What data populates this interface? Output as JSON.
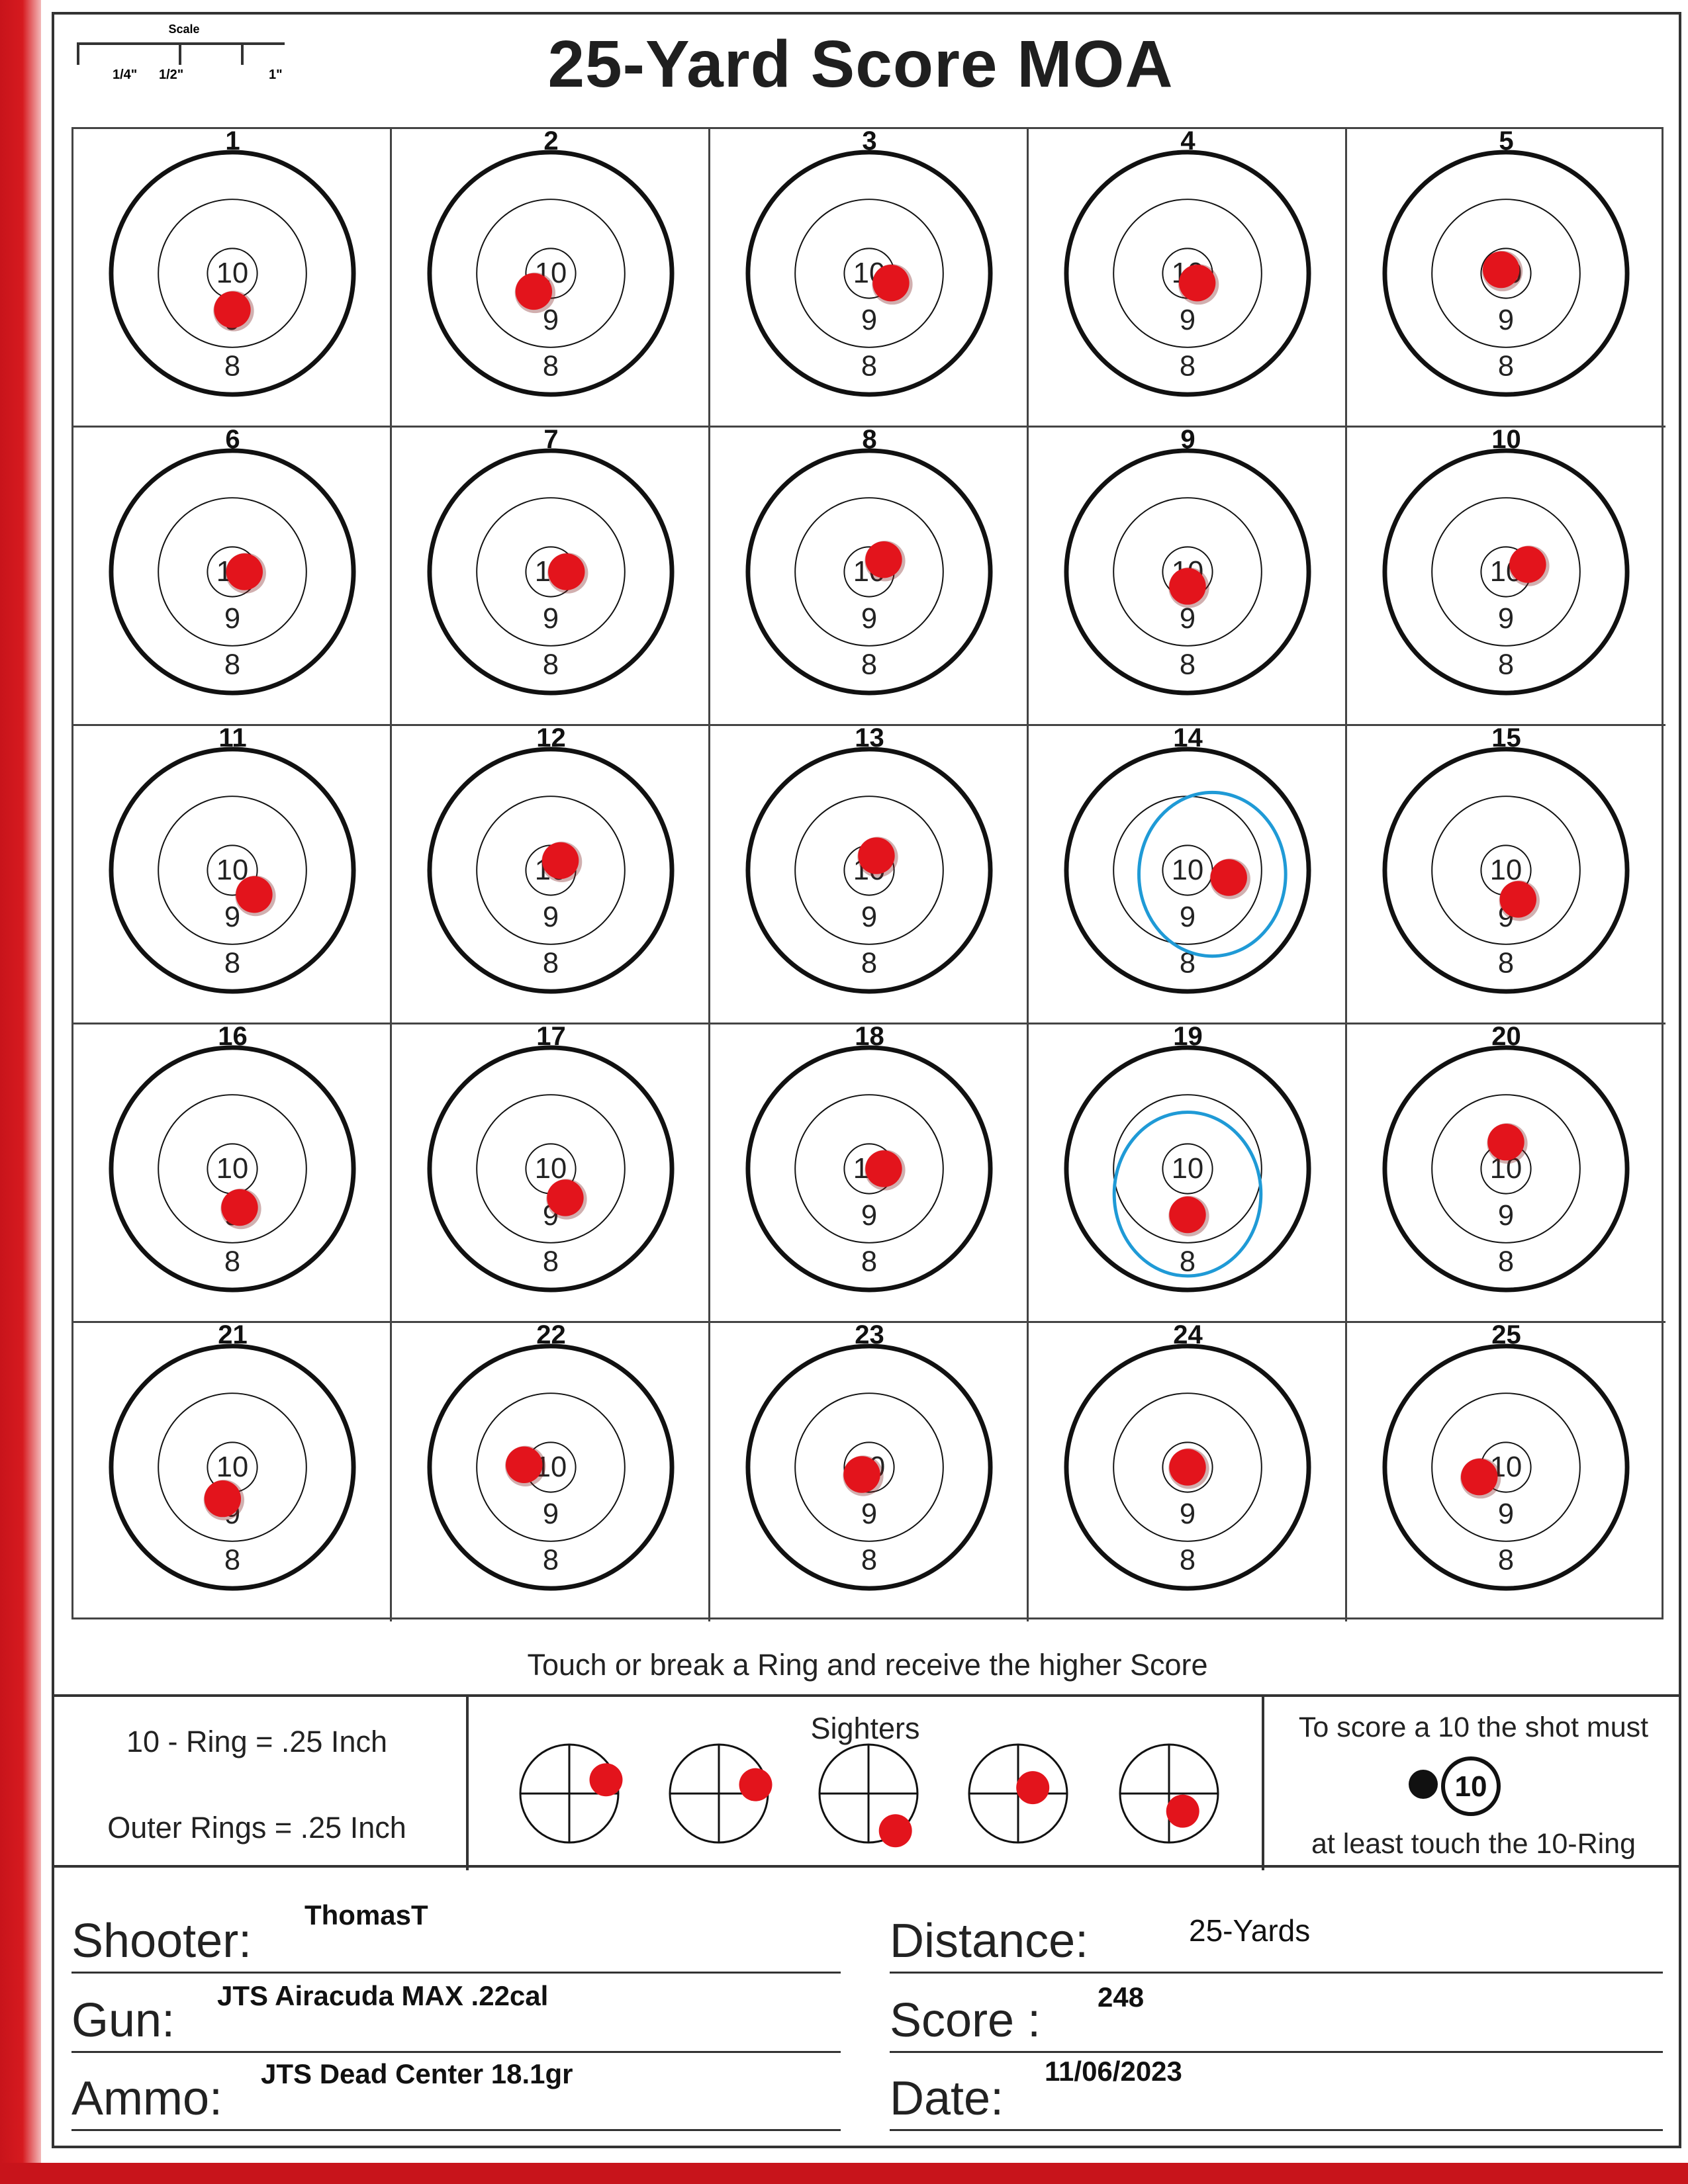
{
  "title": "25-Yard Score MOA",
  "scale": {
    "caption": "Scale",
    "labels": [
      "1/4\"",
      "1/2\"",
      "1\""
    ]
  },
  "targets": [
    {
      "number": "1",
      "impact": [
        0.0,
        0.3
      ]
    },
    {
      "number": "2",
      "impact": [
        -0.14,
        0.15
      ]
    },
    {
      "number": "3",
      "impact": [
        0.18,
        0.08
      ]
    },
    {
      "number": "4",
      "impact": [
        0.08,
        0.08
      ]
    },
    {
      "number": "5",
      "impact": [
        -0.04,
        -0.03
      ]
    },
    {
      "number": "6",
      "impact": [
        0.1,
        0.0
      ]
    },
    {
      "number": "7",
      "impact": [
        0.13,
        0.0
      ]
    },
    {
      "number": "8",
      "impact": [
        0.12,
        -0.1
      ]
    },
    {
      "number": "9",
      "impact": [
        0.0,
        0.12
      ]
    },
    {
      "number": "10",
      "impact": [
        0.18,
        -0.06
      ]
    },
    {
      "number": "11",
      "impact": [
        0.18,
        0.2
      ]
    },
    {
      "number": "12",
      "impact": [
        0.08,
        -0.08
      ]
    },
    {
      "number": "13",
      "impact": [
        0.06,
        -0.12
      ]
    },
    {
      "number": "14",
      "impact": [
        0.34,
        0.06
      ],
      "circled": true
    },
    {
      "number": "15",
      "impact": [
        0.1,
        0.24
      ]
    },
    {
      "number": "16",
      "impact": [
        0.06,
        0.32
      ]
    },
    {
      "number": "17",
      "impact": [
        0.12,
        0.24
      ]
    },
    {
      "number": "18",
      "impact": [
        0.12,
        0.0
      ]
    },
    {
      "number": "19",
      "impact": [
        0.0,
        0.38
      ],
      "circled": true
    },
    {
      "number": "20",
      "impact": [
        0.0,
        -0.22
      ]
    },
    {
      "number": "21",
      "impact": [
        -0.08,
        0.26
      ]
    },
    {
      "number": "22",
      "impact": [
        -0.22,
        -0.02
      ]
    },
    {
      "number": "23",
      "impact": [
        -0.06,
        0.06
      ]
    },
    {
      "number": "24",
      "impact": [
        0.0,
        0.0
      ]
    },
    {
      "number": "25",
      "impact": [
        -0.22,
        0.08
      ]
    }
  ],
  "ring_labels": {
    "inner": "10",
    "middle": "9",
    "outer": "8"
  },
  "touch_rule": "Touch or break a Ring and receive the higher Score",
  "ring_info": {
    "ten": "10 - Ring = .25 Inch",
    "outer": "Outer Rings = .25 Inch"
  },
  "sighters": {
    "title": "Sighters",
    "impacts": [
      [
        0.75,
        -0.28
      ],
      [
        0.75,
        -0.18
      ],
      [
        0.55,
        0.76
      ],
      [
        0.3,
        -0.12
      ],
      [
        0.28,
        0.36
      ]
    ]
  },
  "score_note": {
    "line1": "To score a 10 the shot must",
    "ring_number": "10",
    "line2": "at least touch the 10-Ring"
  },
  "form": {
    "shooter_label": "Shooter:",
    "shooter": "ThomasT",
    "gun_label": "Gun:",
    "gun": "JTS Airacuda MAX .22cal",
    "ammo_label": "Ammo:",
    "ammo": "JTS Dead Center 18.1gr",
    "distance_label": "Distance:",
    "distance": "25-Yards",
    "score_label": "Score :",
    "score": "248",
    "date_label": "Date:",
    "date": "11/06/2023"
  },
  "colors": {
    "impact": "#e3141c",
    "annotation": "#1f9ad6",
    "ink": "#222222"
  }
}
